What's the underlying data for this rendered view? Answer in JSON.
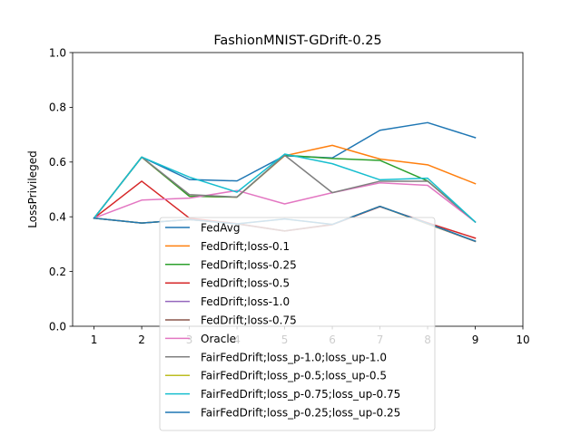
{
  "chart_data": {
    "type": "line",
    "title": "FashionMNIST-GDrift-0.25",
    "xlabel": "",
    "ylabel": "LossPrivileged",
    "xlim": [
      0.55,
      10
    ],
    "ylim": [
      0,
      1
    ],
    "x_ticks": [
      "1",
      "2",
      "3",
      "4",
      "5",
      "6",
      "7",
      "8",
      "9",
      "10"
    ],
    "y_ticks": [
      "0.0",
      "0.2",
      "0.4",
      "0.6",
      "0.8",
      "1.0"
    ],
    "grid": false,
    "legend_position": "lower-center",
    "x": [
      1,
      2,
      3,
      4,
      5,
      6,
      7,
      8,
      9
    ],
    "series": [
      {
        "name": "FedAvg",
        "color": "#1f77b4",
        "values": [
          0.395,
          0.618,
          0.536,
          0.531,
          0.623,
          0.615,
          0.716,
          0.744,
          0.689
        ]
      },
      {
        "name": "FedDrift;loss-0.1",
        "color": "#ff7f0e",
        "values": [
          0.395,
          0.618,
          0.475,
          0.472,
          0.623,
          0.661,
          0.611,
          0.59,
          0.521
        ]
      },
      {
        "name": "FedDrift;loss-0.25",
        "color": "#2ca02c",
        "values": [
          0.395,
          0.618,
          0.475,
          0.472,
          0.625,
          0.613,
          0.606,
          0.531,
          0.381
        ]
      },
      {
        "name": "FedDrift;loss-0.5",
        "color": "#d62728",
        "values": [
          0.395,
          0.53,
          0.395,
          0.375,
          0.348,
          0.371,
          0.437,
          0.378,
          0.322
        ]
      },
      {
        "name": "FedDrift;loss-1.0",
        "color": "#9467bd",
        "values": [
          0.395,
          0.377,
          0.39,
          0.374,
          0.348,
          0.372,
          0.438,
          0.374,
          0.311
        ]
      },
      {
        "name": "FedDrift;loss-0.75",
        "color": "#8c564b",
        "values": [
          0.395,
          0.377,
          0.39,
          0.374,
          0.348,
          0.372,
          0.438,
          0.374,
          0.31
        ]
      },
      {
        "name": "Oracle",
        "color": "#e377c2",
        "values": [
          0.395,
          0.461,
          0.468,
          0.496,
          0.447,
          0.488,
          0.524,
          0.515,
          0.381
        ]
      },
      {
        "name": "FairFedDrift;loss_p-1.0;loss_up-1.0",
        "color": "#7f7f7f",
        "values": [
          0.395,
          0.618,
          0.481,
          0.472,
          0.625,
          0.488,
          0.53,
          0.53,
          0.381
        ]
      },
      {
        "name": "FairFedDrift;loss_p-0.5;loss_up-0.5",
        "color": "#bcbd22",
        "values": [
          0.395,
          0.377,
          0.39,
          0.374,
          0.392,
          0.372,
          0.438,
          0.375,
          0.311
        ]
      },
      {
        "name": "FairFedDrift;loss_p-0.75;loss_up-0.75",
        "color": "#17becf",
        "values": [
          0.395,
          0.618,
          0.545,
          0.49,
          0.629,
          0.594,
          0.535,
          0.541,
          0.381
        ]
      },
      {
        "name": "FairFedDrift;loss_p-0.25;loss_up-0.25",
        "color": "#1f77b4",
        "values": [
          0.395,
          0.377,
          0.39,
          0.374,
          0.392,
          0.372,
          0.438,
          0.376,
          0.311
        ]
      }
    ]
  }
}
